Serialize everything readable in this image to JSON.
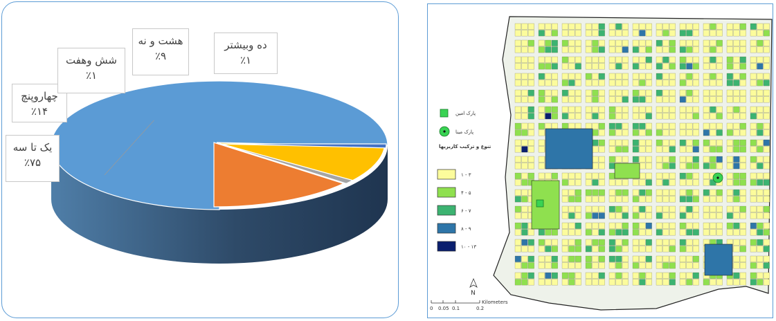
{
  "chart_data": {
    "type": "pie",
    "categories": [
      "یک تا سه",
      "چهاروپنچ",
      "شش وهفت",
      "هشت و نه",
      "ده وبیشتر"
    ],
    "values": [
      75,
      14,
      1,
      9,
      1
    ],
    "value_labels": [
      "٪۷۵",
      "٪۱۴",
      "٪۱",
      "٪۹",
      "٪۱"
    ],
    "colors": [
      "#5b9bd5",
      "#ed7d31",
      "#a5a5a5",
      "#ffc000",
      "#4472c4"
    ]
  },
  "map": {
    "legend_park_1": "پارک امین",
    "legend_park_2": "پارک مینا",
    "legend_title": "تنوع و ترکیب کاربریها",
    "legend_classes": [
      {
        "label": "۱ - ۳",
        "color": "#fcfc9c"
      },
      {
        "label": "۴ - ۵",
        "color": "#8fe04f"
      },
      {
        "label": "۶ - ۷",
        "color": "#3cb371"
      },
      {
        "label": "۸ - ۹",
        "color": "#2e75a8"
      },
      {
        "label": "۱۰ - ۱۳",
        "color": "#0a1f6e"
      }
    ],
    "north_label": "N",
    "scale_unit": "Kilometers",
    "scale_ticks": [
      "0",
      "0.05",
      "0.1",
      "0.2"
    ]
  }
}
